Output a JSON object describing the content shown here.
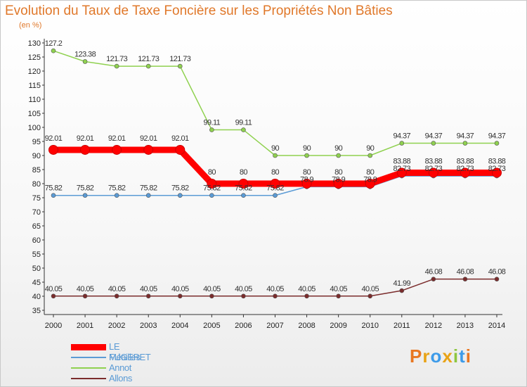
{
  "header": {
    "title": "Evolution du Taux de Taxe Foncière sur les Propriétés Non Bâties",
    "unit": "(en %)"
  },
  "logo": {
    "letters": [
      "P",
      "r",
      "o",
      "x",
      "i",
      "t",
      "i"
    ],
    "colors": [
      "#e87722",
      "#e8a317",
      "#3d9be9",
      "#e8a317",
      "#8dc63f",
      "#3d9be9",
      "#e87722"
    ]
  },
  "chart_data": {
    "type": "line",
    "title": "Evolution du Taux de Taxe Foncière sur les Propriétés Non Bâties",
    "ylabel": "(en %)",
    "xlabel": "",
    "ylim": [
      35,
      130
    ],
    "ytick_step": 5,
    "grid": false,
    "categories": [
      "2000",
      "2001",
      "2002",
      "2003",
      "2004",
      "2005",
      "2006",
      "2007",
      "2008",
      "2009",
      "2010",
      "2011",
      "2012",
      "2013",
      "2014"
    ],
    "series": [
      {
        "name": "LE FUGERET",
        "color": "#ff0000",
        "width": 9,
        "bold": true,
        "values": [
          92.01,
          92.01,
          92.01,
          92.01,
          92.01,
          80,
          80,
          80,
          80,
          80,
          80,
          83.88,
          83.88,
          83.88,
          83.88
        ],
        "labels": [
          "92.01",
          "92.01",
          "92.01",
          "92.01",
          "92.01",
          "80",
          "80",
          "80",
          "80",
          "80",
          "80",
          "83.88",
          "83.88",
          "83.88",
          "83.88"
        ]
      },
      {
        "name": "Méailles",
        "color": "#5b9bd5",
        "width": 1.5,
        "values": [
          75.82,
          75.82,
          75.82,
          75.82,
          75.82,
          75.82,
          75.82,
          75.82,
          78.9,
          78.9,
          78.9,
          82.73,
          82.73,
          82.73,
          82.73
        ],
        "labels": [
          "75.82",
          "75.82",
          "75.82",
          "75.82",
          "75.82",
          "75.82",
          "75.82",
          "75.82",
          "78.9",
          "78.9",
          "78.9",
          "82.73",
          "82.73",
          "82.73",
          "82.73"
        ]
      },
      {
        "name": "Annot",
        "color": "#8fd14f",
        "width": 1.5,
        "values": [
          127.2,
          123.38,
          121.73,
          121.73,
          121.73,
          99.11,
          99.11,
          90,
          90,
          90,
          90,
          94.37,
          94.37,
          94.37,
          94.37
        ],
        "labels": [
          "127.2",
          "123.38",
          "121.73",
          "121.73",
          "121.73",
          "99.11",
          "99.11",
          "90",
          "90",
          "90",
          "90",
          "94.37",
          "94.37",
          "94.37",
          "94.37"
        ]
      },
      {
        "name": "Allons",
        "color": "#7b2c2c",
        "width": 1.5,
        "values": [
          40.05,
          40.05,
          40.05,
          40.05,
          40.05,
          40.05,
          40.05,
          40.05,
          40.05,
          40.05,
          40.05,
          41.99,
          46.08,
          46.08,
          46.08
        ],
        "labels": [
          "40.05",
          "40.05",
          "40.05",
          "40.05",
          "40.05",
          "40.05",
          "40.05",
          "40.05",
          "40.05",
          "40.05",
          "40.05",
          "41.99",
          "46.08",
          "46.08",
          "46.08"
        ]
      }
    ]
  }
}
